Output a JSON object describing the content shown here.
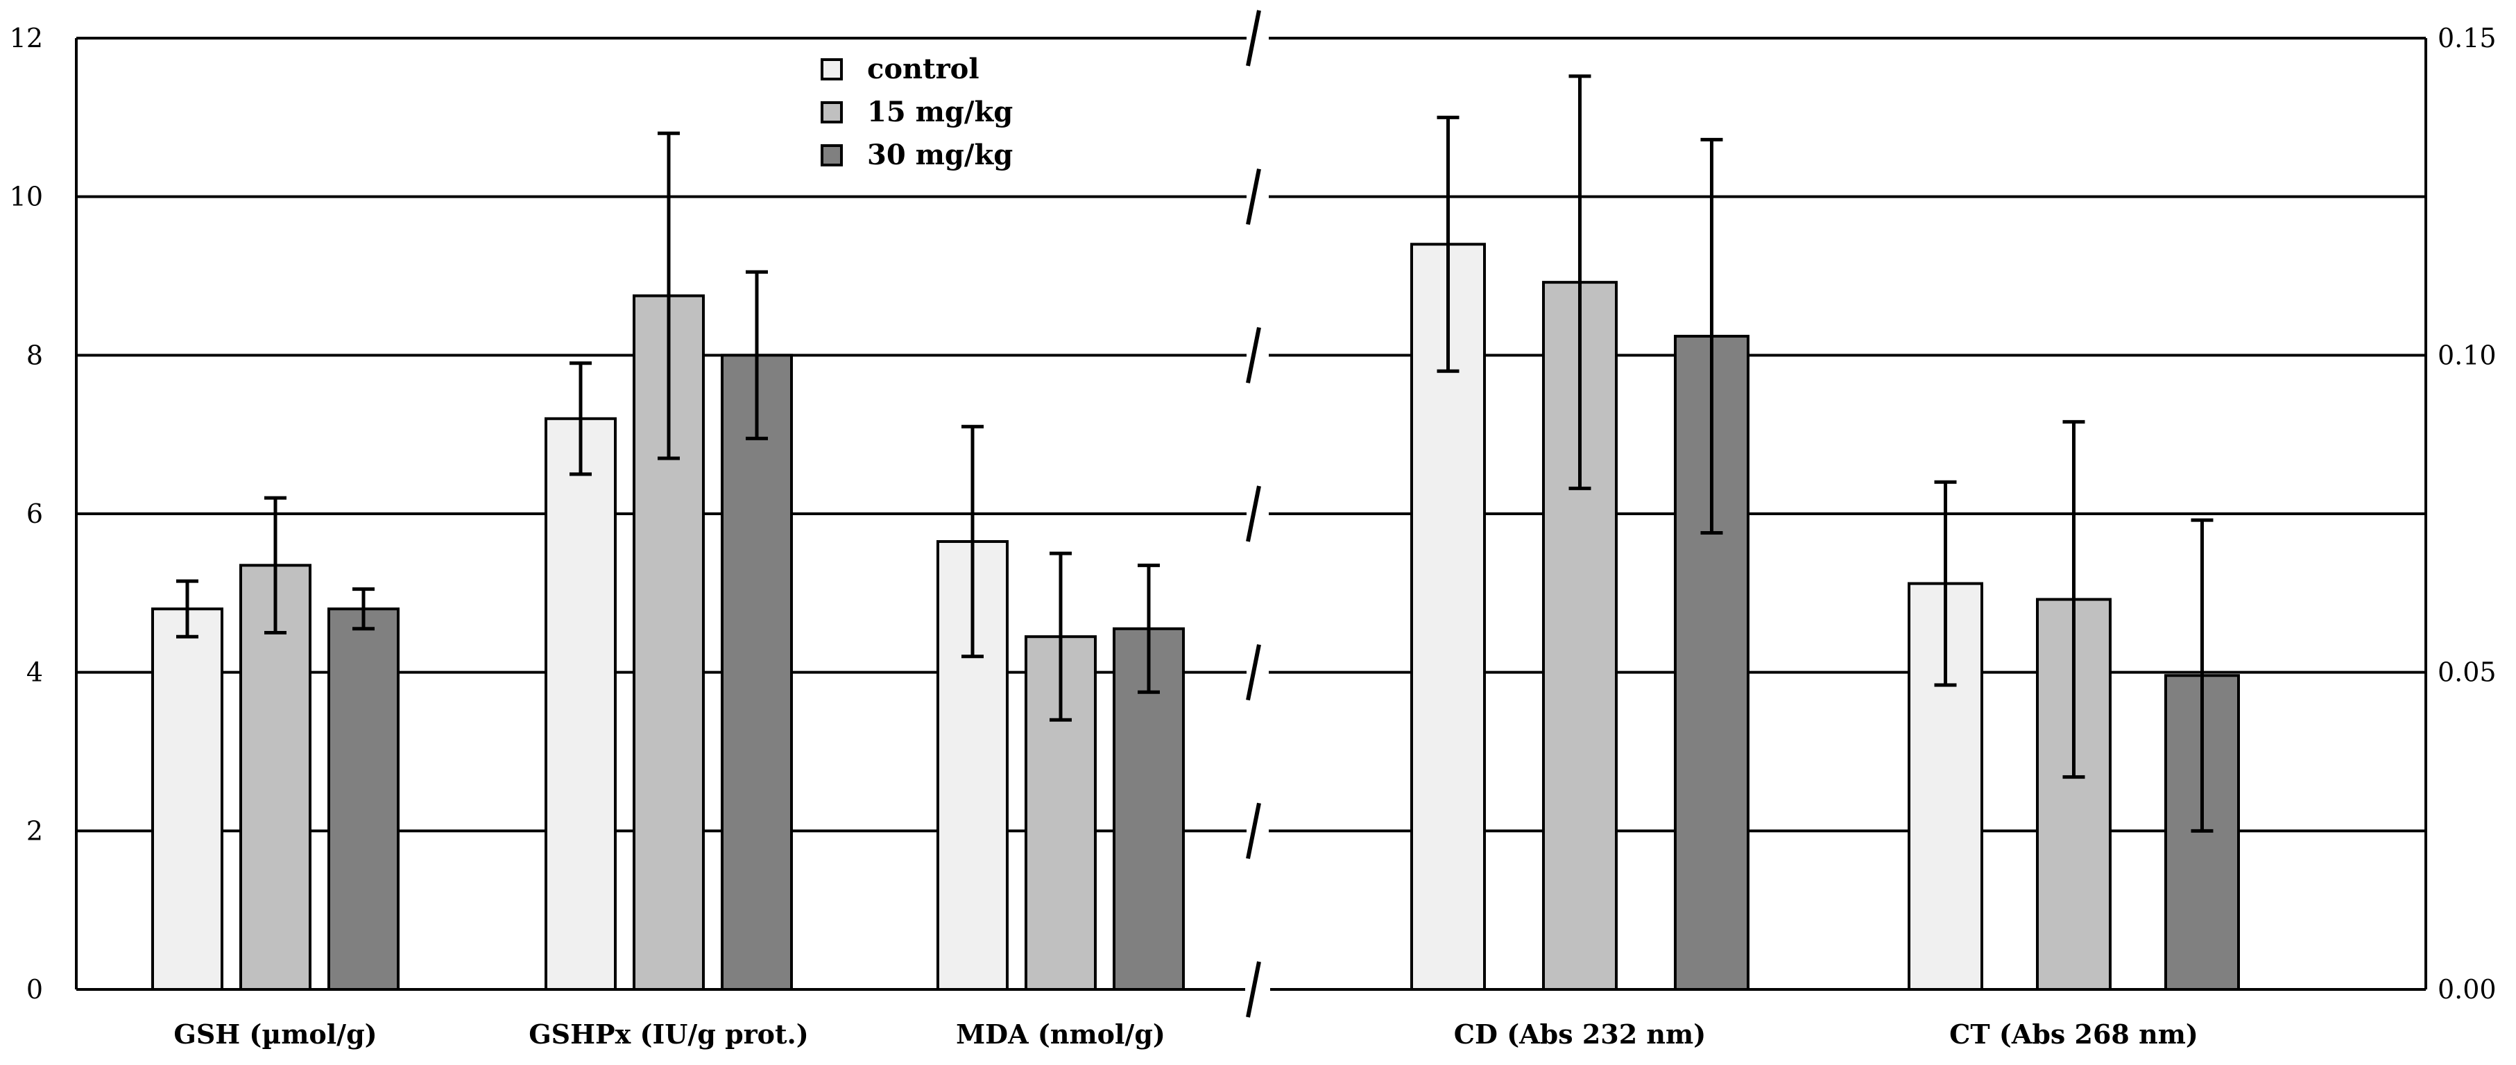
{
  "chart_data": {
    "type": "bar",
    "left_panel": {
      "categories": [
        "GSH (µmol/g)",
        "GSHPx (IU/g prot.)",
        "MDA (nmol/g)"
      ],
      "ylim": [
        0,
        12
      ],
      "yticks": [
        "0",
        "2",
        "4",
        "6",
        "8",
        "10",
        "12"
      ],
      "series": [
        {
          "name": "control",
          "values": [
            4.8,
            7.2,
            5.65
          ],
          "errors": [
            0.35,
            0.7,
            1.45
          ]
        },
        {
          "name": "15 mg/kg",
          "values": [
            5.35,
            8.75,
            4.45
          ],
          "errors": [
            0.85,
            2.05,
            1.05
          ]
        },
        {
          "name": "30 mg/kg",
          "values": [
            4.8,
            8.0,
            4.55
          ],
          "errors": [
            0.25,
            1.05,
            0.8
          ]
        }
      ]
    },
    "right_panel": {
      "categories": [
        "CD (Abs 232 nm)",
        "CT (Abs 268 nm)"
      ],
      "ylim": [
        0,
        0.15
      ],
      "yticks": [
        "0.00",
        "0.05",
        "0.10",
        "0.15"
      ],
      "series": [
        {
          "name": "control",
          "values": [
            0.1175,
            0.064
          ],
          "errors": [
            0.02,
            0.016
          ]
        },
        {
          "name": "15 mg/kg",
          "values": [
            0.1115,
            0.0615
          ],
          "errors": [
            0.0325,
            0.028
          ]
        },
        {
          "name": "30 mg/kg",
          "values": [
            0.103,
            0.0495
          ],
          "errors": [
            0.031,
            0.0245
          ]
        }
      ]
    },
    "legend": {
      "position": "top-center",
      "entries": [
        "control",
        "15 mg/kg",
        "30 mg/kg"
      ]
    },
    "grid": true
  },
  "colors": {
    "control": "#f0f0f0",
    "15 mg/kg": "#c0c0c0",
    "30 mg/kg": "#808080",
    "line": "#000000"
  }
}
